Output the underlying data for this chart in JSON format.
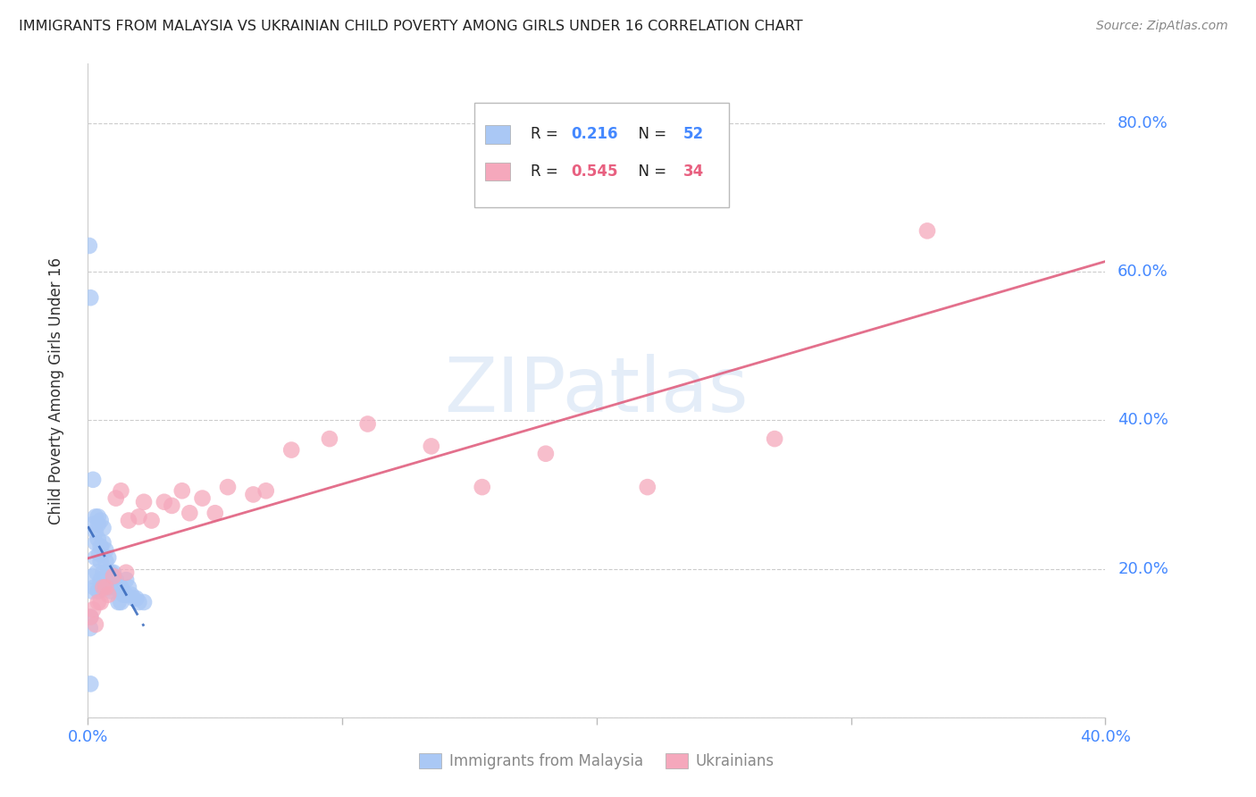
{
  "title": "IMMIGRANTS FROM MALAYSIA VS UKRAINIAN CHILD POVERTY AMONG GIRLS UNDER 16 CORRELATION CHART",
  "source": "Source: ZipAtlas.com",
  "ylabel": "Child Poverty Among Girls Under 16",
  "watermark": "ZIPatlas",
  "xlim": [
    0.0,
    0.4
  ],
  "ylim": [
    0.0,
    0.88
  ],
  "malaysia_color": "#aac8f5",
  "ukraine_color": "#f5a8bc",
  "malaysia_line_color": "#3366bb",
  "ukraine_line_color": "#e06080",
  "right_tick_color": "#4488ff",
  "legend_r_color": "#222222",
  "legend_val1_color": "#4488ff",
  "legend_val2_color": "#4488ff",
  "malaysia_x": [
    0.0005,
    0.001,
    0.001,
    0.0015,
    0.002,
    0.002,
    0.002,
    0.0025,
    0.003,
    0.003,
    0.003,
    0.003,
    0.0035,
    0.004,
    0.004,
    0.004,
    0.004,
    0.0045,
    0.005,
    0.005,
    0.005,
    0.005,
    0.006,
    0.006,
    0.006,
    0.006,
    0.007,
    0.007,
    0.007,
    0.008,
    0.008,
    0.008,
    0.009,
    0.009,
    0.01,
    0.01,
    0.011,
    0.012,
    0.012,
    0.013,
    0.013,
    0.014,
    0.015,
    0.015,
    0.016,
    0.017,
    0.018,
    0.019,
    0.02,
    0.022,
    0.001,
    0.0008
  ],
  "malaysia_y": [
    0.635,
    0.565,
    0.135,
    0.17,
    0.32,
    0.26,
    0.19,
    0.175,
    0.27,
    0.25,
    0.235,
    0.215,
    0.195,
    0.27,
    0.26,
    0.24,
    0.17,
    0.22,
    0.265,
    0.23,
    0.21,
    0.185,
    0.255,
    0.235,
    0.195,
    0.175,
    0.225,
    0.21,
    0.185,
    0.215,
    0.195,
    0.175,
    0.195,
    0.17,
    0.195,
    0.175,
    0.185,
    0.175,
    0.155,
    0.175,
    0.155,
    0.165,
    0.185,
    0.165,
    0.175,
    0.165,
    0.16,
    0.16,
    0.155,
    0.155,
    0.045,
    0.12
  ],
  "ukraine_x": [
    0.001,
    0.002,
    0.003,
    0.004,
    0.005,
    0.006,
    0.007,
    0.008,
    0.01,
    0.011,
    0.013,
    0.015,
    0.016,
    0.02,
    0.022,
    0.025,
    0.03,
    0.033,
    0.037,
    0.04,
    0.045,
    0.05,
    0.055,
    0.065,
    0.07,
    0.08,
    0.095,
    0.11,
    0.135,
    0.155,
    0.18,
    0.22,
    0.27,
    0.33
  ],
  "ukraine_y": [
    0.135,
    0.145,
    0.125,
    0.155,
    0.155,
    0.175,
    0.175,
    0.165,
    0.19,
    0.295,
    0.305,
    0.195,
    0.265,
    0.27,
    0.29,
    0.265,
    0.29,
    0.285,
    0.305,
    0.275,
    0.295,
    0.275,
    0.31,
    0.3,
    0.305,
    0.36,
    0.375,
    0.395,
    0.365,
    0.31,
    0.355,
    0.31,
    0.375,
    0.655
  ],
  "malaysia_trendline_x": [
    0.0,
    0.022
  ],
  "ukraine_trendline_x": [
    0.0,
    0.4
  ]
}
